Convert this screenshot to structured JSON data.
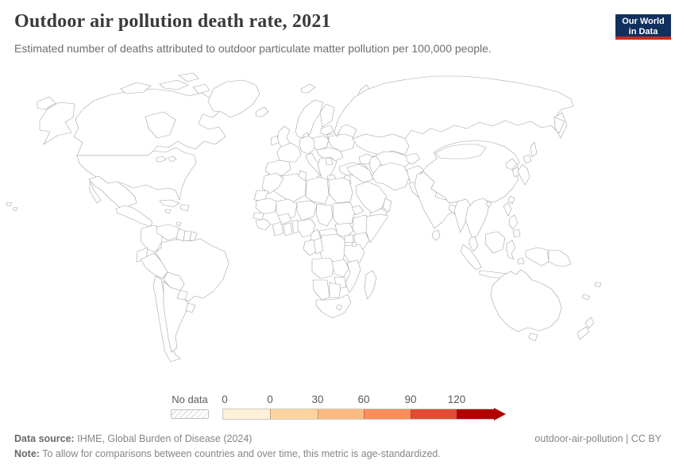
{
  "header": {
    "title": "Outdoor air pollution death rate, 2021",
    "subtitle": "Estimated number of deaths attributed to outdoor particulate matter pollution per 100,000 people.",
    "logo_line1": "Our World",
    "logo_line2": "in Data"
  },
  "colors": {
    "logo_bg": "#12305e",
    "logo_accent": "#cb2a23",
    "country_border": "#a8a49d"
  },
  "footer": {
    "source_label": "Data source:",
    "source_text": "IHME, Global Burden of Disease (2024)",
    "note_label": "Note:",
    "note_text": "To allow for comparisons between countries and over time, this metric is age-standardized.",
    "credit": "outdoor-air-pollution | CC BY"
  },
  "chart_data": {
    "type": "choropleth",
    "title": "Outdoor air pollution death rate, 2021",
    "metric": "Estimated deaths attributed to outdoor particulate matter pollution per 100,000 people",
    "year": 2021,
    "projection": "world",
    "legend": {
      "no_data_label": "No data",
      "tick_labels": [
        "0",
        "0",
        "30",
        "60",
        "90",
        "120"
      ],
      "bin_colors": [
        "#fef0d9",
        "#fdd49e",
        "#fdbb84",
        "#fc8d59",
        "#e34a33",
        "#b30000"
      ],
      "open_ended_arrow": true
    },
    "regions": {
      "canada": "#fdd49e",
      "canada-islands": "#fdd49e",
      "alaska": "#fdd49e",
      "chukotka": "#fdbb84",
      "greenland": "#fdd49e",
      "svalbard": "#fdd49e",
      "novaya-zemlya": "#fdbb84",
      "usa": "#fdd49e",
      "great-lakes": "#ffffff",
      "hawaii": "#fdd49e",
      "mexico": "#fdbb84",
      "central-america": "#fc8d59",
      "cuba": "#fdbb84",
      "hispaniola": "#fc8d59",
      "jamaica": "#fc8d59",
      "trinidad": "#e34a33",
      "colombia": "#fdd49e",
      "venezuela": "#fc8d59",
      "guyana": "#e34a33",
      "suriname": "no-data",
      "french-guiana": "#fdd49e",
      "ecuador": "#fc8d59",
      "peru": "#fdbb84",
      "brazil": "#fdd49e",
      "bolivia": "#fdbb84",
      "paraguay": "#fdbb84",
      "chile": "#fdd49e",
      "argentina": "#fdd49e",
      "uruguay": "#fdd49e",
      "iceland": "#fdd49e",
      "norway-sweden": "#fef0d9",
      "finland": "#fdd49e",
      "uk": "#fef0d9",
      "ireland": "#fef0d9",
      "denmark": "#fdd49e",
      "baltics": "#fdd49e",
      "belarus": "#fdbb84",
      "poland": "#fdbb84",
      "germany": "#fdd49e",
      "france": "#fef0d9",
      "iberia": "#fef0d9",
      "italy": "#fdd49e",
      "central-europe": "#fc8d59",
      "ukraine": "#fc8d59",
      "balkans": "#fc8d59",
      "serbia": "#e34a33",
      "greece": "#fc8d59",
      "russia": "#fdbb84",
      "kazakhstan": "#fc8d59",
      "uzbekistan-turkmenistan": "#b30000",
      "kyrgyzstan-tajikistan": "#fdd49e",
      "caucasus": "#e34a33",
      "caspian-sea": "#ffffff",
      "turkey": "#fc8d59",
      "syria-iraq": "#b30000",
      "jordan-israel": "#b30000",
      "saudi-arabia": "#b30000",
      "yemen": "#e34a33",
      "oman": "#fc8d59",
      "iran": "#fc8d59",
      "afghanistan": "#fdbb84",
      "pakistan": "#fc8d59",
      "india": "#e34a33",
      "nepal": "#fc8d59",
      "bangladesh": "#fdbb84",
      "sri-lanka": "#fdbb84",
      "myanmar": "#fc8d59",
      "china": "#e34a33",
      "mongolia": "#e34a33",
      "hainan": "#e34a33",
      "taiwan": "#e34a33",
      "north-korea": "#fdbb84",
      "south-korea": "#fdd49e",
      "japan": "#fdd49e",
      "indochina": "#fdd49e",
      "malay-peninsula": "#fc8d59",
      "sumatra": "#fc8d59",
      "borneo": "#fc8d59",
      "java": "#fc8d59",
      "sulawesi": "#fc8d59",
      "moluccas": "#fc8d59",
      "lesser-sunda": "#fc8d59",
      "philippines": "#fc8d59",
      "indonesian-papua": "#fc8d59",
      "papua-new-guinea": "#fdbb84",
      "fiji": "#fc8d59",
      "new-caledonia": "#fc8d59",
      "australia": "#fdd49e",
      "tasmania": "#fdd49e",
      "new-zealand": "#fdd49e",
      "morocco": "#fc8d59",
      "western-sahara": "no-data",
      "algeria": "#fc8d59",
      "tunisia": "#fc8d59",
      "libya": "#e34a33",
      "egypt": "#b30000",
      "mauritania": "#fc8d59",
      "mali": "#fdbb84",
      "niger": "#fdbb84",
      "chad": "#fdbb84",
      "sudan": "#e34a33",
      "eritrea": "#e34a33",
      "senegal": "#fc8d59",
      "guinea": "#fdbb84",
      "cote-divoire": "#fdbb84",
      "burkina-faso": "#fc8d59",
      "ghana": "#fc8d59",
      "togo-benin": "#fc8d59",
      "nigeria": "#fc8d59",
      "cameroon": "#fc8d59",
      "central-african-republic": "#fdd49e",
      "south-sudan": "#fdd49e",
      "ethiopia": "#fdd49e",
      "somalia": "#fdd49e",
      "gabon": "#e34a33",
      "congo": "#fdbb84",
      "dr-congo": "#fdd49e",
      "uganda": "#fdd49e",
      "kenya": "#fef0d9",
      "tanzania": "#fdd49e",
      "lake-victoria": "#ffffff",
      "angola": "#fc8d59",
      "zambia": "#fdbb84",
      "mozambique": "#fdd49e",
      "zimbabwe": "#fdbb84",
      "namibia": "#fc8d59",
      "botswana": "#fc8d59",
      "south-africa": "#fc8d59",
      "lesotho": "#e34a33",
      "madagascar": "#fdd49e"
    }
  }
}
